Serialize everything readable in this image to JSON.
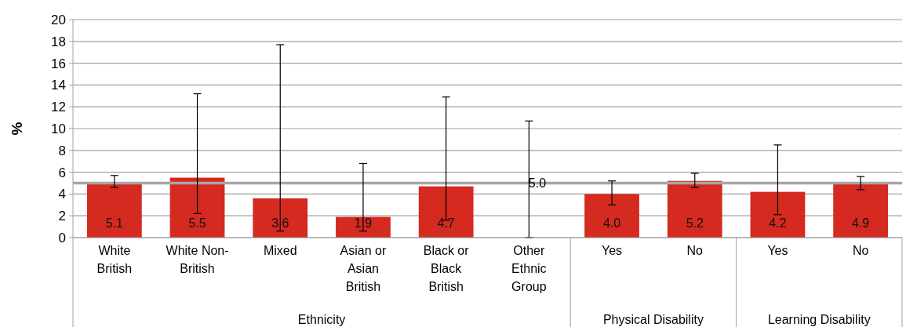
{
  "chart_data": {
    "type": "bar",
    "ylabel": "%",
    "categories": [
      "White British",
      "White Non-British",
      "Mixed",
      "Asian or Asian British",
      "Black or Black British",
      "Other Ethnic Group",
      "Yes",
      "No",
      "Yes",
      "No"
    ],
    "values": [
      5.1,
      5.5,
      3.6,
      1.9,
      4.7,
      0,
      4.0,
      5.2,
      4.2,
      4.9
    ],
    "value_labels": [
      "5.1",
      "5.5",
      "3.6",
      "1.9",
      "4.7",
      null,
      "4.0",
      "5.2",
      "4.2",
      "4.9"
    ],
    "errors": [
      [
        4.6,
        5.7
      ],
      [
        2.2,
        13.2
      ],
      [
        0.6,
        17.7
      ],
      [
        0.6,
        6.8
      ],
      [
        1.6,
        12.9
      ],
      [
        0,
        10.7
      ],
      [
        3.0,
        5.2
      ],
      [
        4.6,
        5.9
      ],
      [
        2.1,
        8.5
      ],
      [
        4.4,
        5.6
      ]
    ],
    "color": "#d42a20",
    "ylim": [
      0,
      20
    ],
    "yticks": [
      0,
      2,
      4,
      6,
      8,
      10,
      12,
      14,
      16,
      18,
      20
    ],
    "grid": "y",
    "ref_lines": [
      {
        "axis": "y",
        "value": 5.0,
        "label": "5.0",
        "color": "#a6a6a6"
      }
    ],
    "annotations": [
      "Ethnicity",
      "Physical Disability",
      "Learning Disability"
    ]
  }
}
